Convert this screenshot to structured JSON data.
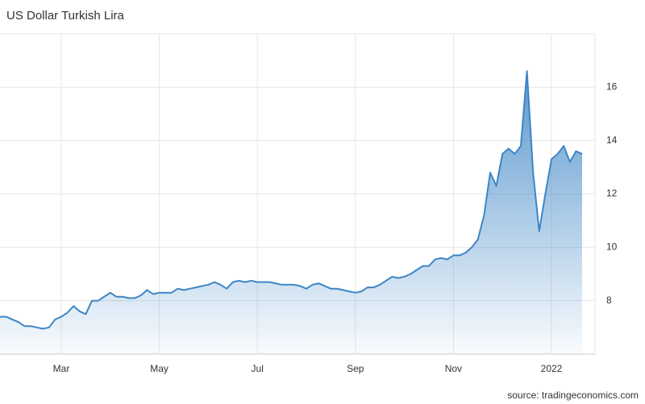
{
  "chart_data": {
    "type": "area",
    "title": "US Dollar Turkish Lira",
    "source": "source: tradingeconomics.com",
    "categories": [
      null,
      null,
      null,
      null,
      null,
      null,
      null,
      null,
      null,
      null,
      "Mar",
      null,
      null,
      null,
      null,
      null,
      null,
      null,
      null,
      null,
      null,
      null,
      null,
      null,
      null,
      null,
      "May",
      null,
      null,
      null,
      null,
      null,
      null,
      null,
      null,
      null,
      null,
      null,
      null,
      null,
      null,
      null,
      "Jul",
      null,
      null,
      null,
      null,
      null,
      null,
      null,
      null,
      null,
      null,
      null,
      null,
      null,
      null,
      null,
      "Sep",
      null,
      null,
      null,
      null,
      null,
      null,
      null,
      null,
      null,
      null,
      null,
      null,
      null,
      null,
      null,
      "Nov",
      null,
      null,
      null,
      null,
      null,
      null,
      null,
      null,
      null,
      null,
      null,
      null,
      null,
      null,
      null,
      "2022",
      null,
      null,
      null,
      null,
      null
    ],
    "values": [
      7.4,
      7.4,
      7.3,
      7.2,
      7.05,
      7.05,
      7.0,
      6.95,
      7.0,
      7.3,
      7.4,
      7.55,
      7.8,
      7.6,
      7.5,
      8.0,
      8.0,
      8.15,
      8.3,
      8.15,
      8.15,
      8.1,
      8.1,
      8.2,
      8.4,
      8.25,
      8.3,
      8.3,
      8.3,
      8.45,
      8.4,
      8.45,
      8.5,
      8.55,
      8.6,
      8.7,
      8.6,
      8.45,
      8.7,
      8.75,
      8.7,
      8.75,
      8.7,
      8.7,
      8.7,
      8.65,
      8.6,
      8.6,
      8.6,
      8.55,
      8.45,
      8.6,
      8.65,
      8.55,
      8.45,
      8.45,
      8.4,
      8.35,
      8.3,
      8.35,
      8.5,
      8.5,
      8.6,
      8.75,
      8.9,
      8.85,
      8.9,
      9.0,
      9.15,
      9.3,
      9.3,
      9.55,
      9.6,
      9.55,
      9.7,
      9.7,
      9.8,
      10.0,
      10.3,
      11.2,
      12.8,
      12.3,
      13.5,
      13.7,
      13.5,
      13.8,
      16.6,
      12.8,
      10.6,
      12.0,
      13.3,
      13.5,
      13.8,
      13.2,
      13.6,
      13.5
    ],
    "color": "#3d85c6",
    "ylim": [
      6,
      18
    ],
    "yticks": [
      8,
      10,
      12,
      14,
      16
    ],
    "grid": true
  }
}
